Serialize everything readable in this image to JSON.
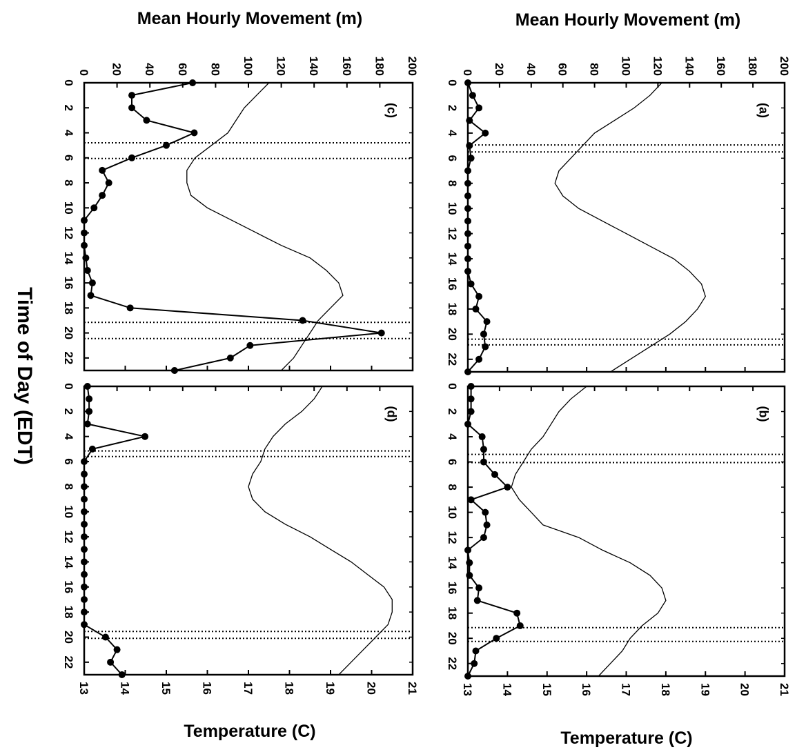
{
  "figure": {
    "movement_axis_label": "Mean Hourly Movement (m)",
    "temperature_axis_label": "Temperature (C)",
    "time_axis_label": "Time of Day (EDT)"
  },
  "colors": {
    "ink": "#000000",
    "background": "#ffffff"
  },
  "chart_data": [
    {
      "type": "line",
      "panel": "(a)",
      "x_label": "Time of Day (EDT)",
      "x_ticks": [
        0,
        2,
        4,
        6,
        8,
        10,
        12,
        14,
        16,
        18,
        20,
        22
      ],
      "x_tick_labels": [
        "0",
        "2",
        "4",
        "6",
        "8",
        "10",
        "12",
        "14",
        "16",
        "18",
        "20",
        "22"
      ],
      "xlim": [
        0,
        23
      ],
      "y_label": "Mean Hourly Movement (m)",
      "ylim": [
        0,
        200
      ],
      "y_ticks": [
        0,
        20,
        40,
        60,
        80,
        100,
        120,
        140,
        160,
        180,
        200
      ],
      "y_tick_labels": [
        "0",
        "20",
        "40",
        "60",
        "80",
        "100",
        "120",
        "140",
        "160",
        "180",
        "200"
      ],
      "y2_label": "Temperature (C)",
      "y2lim": [
        13,
        21
      ],
      "y2_ticks": [
        13,
        14,
        15,
        16,
        17,
        18,
        19,
        20,
        21
      ],
      "y2_tick_labels": [
        "13",
        "14",
        "15",
        "16",
        "17",
        "18",
        "19",
        "20",
        "21"
      ],
      "series": [
        {
          "style": "line-with-markers",
          "x": [
            0,
            1,
            2,
            3,
            4,
            5,
            6,
            7,
            8,
            9,
            10,
            11,
            12,
            13,
            14,
            15,
            16,
            17,
            18,
            19,
            20,
            21,
            22,
            23
          ],
          "y": [
            0,
            3,
            7,
            1,
            11,
            1,
            2,
            0,
            0,
            0,
            0,
            0,
            0,
            0,
            0,
            0,
            2,
            7,
            5,
            12,
            10,
            11,
            7,
            0
          ]
        },
        {
          "style": "line",
          "x": [
            0,
            1,
            2,
            3,
            4,
            5,
            6,
            7,
            8,
            9,
            10,
            11,
            12,
            13,
            14,
            15,
            16,
            17,
            18,
            19,
            20,
            21,
            22,
            23
          ],
          "y": [
            17.9,
            17.6,
            17.2,
            16.7,
            16.2,
            15.9,
            15.6,
            15.3,
            15.2,
            15.4,
            15.8,
            16.4,
            17.0,
            17.6,
            18.2,
            18.6,
            18.9,
            19.0,
            18.8,
            18.5,
            18.1,
            17.6,
            17.1,
            16.6
          ]
        }
      ],
      "vertical_lines": [
        4.95,
        5.5,
        20.4,
        20.85
      ]
    },
    {
      "type": "line",
      "panel": "(b)",
      "x_label": "Time of Day (EDT)",
      "x_ticks": [
        0,
        2,
        4,
        6,
        8,
        10,
        12,
        14,
        16,
        18,
        20,
        22
      ],
      "x_tick_labels": [
        "0",
        "2",
        "4",
        "6",
        "8",
        "10",
        "12",
        "14",
        "16",
        "18",
        "20",
        "22"
      ],
      "xlim": [
        0,
        23
      ],
      "y_label": "Mean Hourly Movement (m)",
      "ylim": [
        0,
        200
      ],
      "y_ticks": [
        0,
        20,
        40,
        60,
        80,
        100,
        120,
        140,
        160,
        180,
        200
      ],
      "y_tick_labels": [
        "0",
        "20",
        "40",
        "60",
        "80",
        "100",
        "120",
        "140",
        "160",
        "180",
        "200"
      ],
      "y2_label": "Temperature (C)",
      "y2lim": [
        13,
        21
      ],
      "y2_ticks": [
        13,
        14,
        15,
        16,
        17,
        18,
        19,
        20,
        21
      ],
      "y2_tick_labels": [
        "13",
        "14",
        "15",
        "16",
        "17",
        "18",
        "19",
        "20",
        "21"
      ],
      "series": [
        {
          "style": "line-with-markers",
          "x": [
            0,
            1,
            2,
            3,
            4,
            5,
            6,
            7,
            8,
            9,
            10,
            11,
            12,
            13,
            14,
            15,
            16,
            17,
            18,
            19,
            20,
            21,
            22,
            23
          ],
          "y": [
            2,
            2,
            2,
            0,
            9,
            10,
            10,
            17,
            25,
            2,
            11,
            12,
            10,
            0,
            1,
            1,
            7,
            6,
            31,
            33,
            18,
            5,
            4,
            0
          ]
        },
        {
          "style": "line",
          "x": [
            0,
            1,
            2,
            3,
            4,
            5,
            6,
            7,
            8,
            9,
            10,
            11,
            12,
            13,
            14,
            15,
            16,
            17,
            18,
            19,
            20,
            21,
            22,
            23
          ],
          "y": [
            16.0,
            15.6,
            15.3,
            15.1,
            14.9,
            14.6,
            14.4,
            14.2,
            14.1,
            14.3,
            14.6,
            14.9,
            15.8,
            16.4,
            17.1,
            17.6,
            17.9,
            18.0,
            17.8,
            17.4,
            17.1,
            16.9,
            16.6,
            16.3
          ]
        }
      ],
      "vertical_lines": [
        5.4,
        6.05,
        19.15,
        20.25
      ]
    },
    {
      "type": "line",
      "panel": "(c)",
      "x_label": "Time of Day (EDT)",
      "x_ticks": [
        0,
        2,
        4,
        6,
        8,
        10,
        12,
        14,
        16,
        18,
        20,
        22
      ],
      "x_tick_labels": [
        "0",
        "2",
        "4",
        "6",
        "8",
        "10",
        "12",
        "14",
        "16",
        "18",
        "20",
        "22"
      ],
      "xlim": [
        0,
        23
      ],
      "y_label": "Mean Hourly Movement (m)",
      "ylim": [
        0,
        200
      ],
      "y_ticks": [
        0,
        20,
        40,
        60,
        80,
        100,
        120,
        140,
        160,
        180,
        200
      ],
      "y_tick_labels": [
        "0",
        "20",
        "40",
        "60",
        "80",
        "100",
        "120",
        "140",
        "160",
        "180",
        "200"
      ],
      "y2_label": "Temperature (C)",
      "y2lim": [
        13,
        21
      ],
      "y2_ticks": [
        13,
        14,
        15,
        16,
        17,
        18,
        19,
        20,
        21
      ],
      "y2_tick_labels": [
        "13",
        "14",
        "15",
        "16",
        "17",
        "18",
        "19",
        "20",
        "21"
      ],
      "series": [
        {
          "style": "line-with-markers",
          "x": [
            0,
            1,
            2,
            3,
            4,
            5,
            6,
            7,
            8,
            9,
            10,
            11,
            12,
            13,
            14,
            15,
            16,
            17,
            18,
            19,
            20,
            21,
            22,
            23
          ],
          "y": [
            66,
            29,
            29,
            38,
            67,
            50,
            29,
            11,
            15,
            11,
            6,
            0,
            0,
            0,
            1,
            2,
            5,
            4,
            28,
            133,
            181,
            101,
            89,
            55
          ]
        },
        {
          "style": "line",
          "x": [
            0,
            1,
            2,
            3,
            4,
            5,
            6,
            7,
            8,
            9,
            10,
            11,
            12,
            13,
            14,
            15,
            16,
            17,
            18,
            19,
            20,
            21,
            22,
            23
          ],
          "y": [
            17.5,
            17.2,
            16.9,
            16.7,
            16.5,
            16.1,
            15.7,
            15.5,
            15.5,
            15.6,
            16.0,
            16.6,
            17.2,
            17.8,
            18.5,
            18.9,
            19.2,
            19.3,
            19.0,
            18.7,
            18.5,
            18.3,
            18.1,
            17.8
          ]
        }
      ],
      "vertical_lines": [
        4.8,
        6.05,
        19.15,
        20.45
      ]
    },
    {
      "type": "line",
      "panel": "(d)",
      "x_label": "Time of Day (EDT)",
      "x_ticks": [
        0,
        2,
        4,
        6,
        8,
        10,
        12,
        14,
        16,
        18,
        20,
        22
      ],
      "x_tick_labels": [
        "0",
        "2",
        "4",
        "6",
        "8",
        "10",
        "12",
        "14",
        "16",
        "18",
        "20",
        "22"
      ],
      "xlim": [
        0,
        23
      ],
      "y_label": "Mean Hourly Movement (m)",
      "ylim": [
        0,
        200
      ],
      "y_ticks": [
        0,
        20,
        40,
        60,
        80,
        100,
        120,
        140,
        160,
        180,
        200
      ],
      "y_tick_labels": [
        "0",
        "20",
        "40",
        "60",
        "80",
        "100",
        "120",
        "140",
        "160",
        "180",
        "200"
      ],
      "y2_label": "Temperature (C)",
      "y2lim": [
        13,
        21
      ],
      "y2_ticks": [
        13,
        14,
        15,
        16,
        17,
        18,
        19,
        20,
        21
      ],
      "y2_tick_labels": [
        "13",
        "14",
        "15",
        "16",
        "17",
        "18",
        "19",
        "20",
        "21"
      ],
      "series": [
        {
          "style": "line-with-markers",
          "x": [
            0,
            1,
            2,
            3,
            4,
            5,
            6,
            7,
            8,
            9,
            10,
            11,
            12,
            13,
            14,
            15,
            16,
            17,
            18,
            19,
            20,
            21,
            22,
            23
          ],
          "y": [
            2,
            3,
            3,
            2,
            37,
            5,
            0,
            0,
            0,
            0,
            0,
            0,
            0,
            0,
            0,
            0,
            0,
            0,
            0,
            0,
            13,
            20,
            16,
            23
          ]
        },
        {
          "style": "line",
          "x": [
            0,
            1,
            2,
            3,
            4,
            5,
            6,
            7,
            8,
            9,
            10,
            11,
            12,
            13,
            14,
            15,
            16,
            17,
            18,
            19,
            20,
            21,
            22,
            23
          ],
          "y": [
            18.8,
            18.6,
            18.3,
            17.9,
            17.6,
            17.4,
            17.3,
            17.1,
            17.0,
            17.1,
            17.4,
            17.9,
            18.5,
            19.0,
            19.5,
            19.9,
            20.3,
            20.5,
            20.5,
            20.4,
            20.1,
            19.8,
            19.5,
            19.2
          ]
        }
      ],
      "vertical_lines": [
        5.15,
        5.6,
        19.55,
        20.1
      ]
    }
  ]
}
